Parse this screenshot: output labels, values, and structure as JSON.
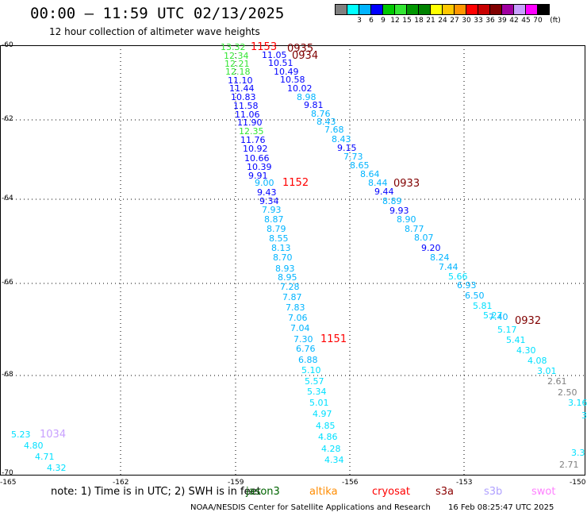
{
  "title": "00:00 – 11:59 UTC 02/13/2025",
  "subtitle": "12 hour collection of altimeter wave heights",
  "lat_labels": [
    "-60",
    "-62",
    "-64",
    "-66",
    "-68",
    "-70"
  ],
  "lon_labels": [
    "-165",
    "-162",
    "-159",
    "-156",
    "-153",
    "-150"
  ],
  "colorbar": {
    "unit": "(ft)",
    "bins": [
      {
        "label": "",
        "color": "#808080"
      },
      {
        "label": "3",
        "color": "#00ffff"
      },
      {
        "label": "6",
        "color": "#00b4ff"
      },
      {
        "label": "9",
        "color": "#0000ff"
      },
      {
        "label": "12",
        "color": "#00c800"
      },
      {
        "label": "15",
        "color": "#32e632"
      },
      {
        "label": "18",
        "color": "#009600"
      },
      {
        "label": "21",
        "color": "#008200"
      },
      {
        "label": "24",
        "color": "#ffff00"
      },
      {
        "label": "27",
        "color": "#ffc800"
      },
      {
        "label": "30",
        "color": "#ff9600"
      },
      {
        "label": "33",
        "color": "#ff0000"
      },
      {
        "label": "36",
        "color": "#c80000"
      },
      {
        "label": "39",
        "color": "#800000"
      },
      {
        "label": "42",
        "color": "#a000a0"
      },
      {
        "label": "45",
        "color": "#c8a0ff"
      },
      {
        "label": "70",
        "color": "#ff00ff"
      },
      {
        "label": "",
        "color": "#000000"
      }
    ]
  },
  "note": "note: 1) Time is in UTC; 2) SWH is in feet",
  "satellites": [
    {
      "name": "jason3",
      "color": "#006400"
    },
    {
      "name": "altika",
      "color": "#ff8c00"
    },
    {
      "name": "cryosat",
      "color": "#ff0000"
    },
    {
      "name": "s3a",
      "color": "#8b0000"
    },
    {
      "name": "s3b",
      "color": "#b0a0ff"
    },
    {
      "name": "swot",
      "color": "#ff80ff"
    }
  ],
  "credit": "NOAA/NESDIS Center for Satellite Applications and Research",
  "generated": "16 Feb 08:25:47 UTC 2025",
  "time_labels": [
    {
      "text": "1153",
      "color": "#ff0000"
    },
    {
      "text": "0935",
      "color": "#800000"
    },
    {
      "text": "0934",
      "color": "#800000"
    },
    {
      "text": "1152",
      "color": "#ff0000"
    },
    {
      "text": "0933",
      "color": "#800000"
    },
    {
      "text": "0932",
      "color": "#800000"
    },
    {
      "text": "1151",
      "color": "#ff0000"
    },
    {
      "text": "1034",
      "color": "#c8a0ff"
    }
  ],
  "track_a": [
    {
      "v": "13.32",
      "c": "#32e632"
    },
    {
      "v": "12.34",
      "c": "#32e632"
    },
    {
      "v": "12.21",
      "c": "#32e632"
    },
    {
      "v": "12.18",
      "c": "#32e632"
    },
    {
      "v": "11.10",
      "c": "#0000ff"
    },
    {
      "v": "11.44",
      "c": "#0000ff"
    },
    {
      "v": "10.83",
      "c": "#0000ff"
    },
    {
      "v": "11.58",
      "c": "#0000ff"
    },
    {
      "v": "11.06",
      "c": "#0000ff"
    },
    {
      "v": "11.90",
      "c": "#0000ff"
    },
    {
      "v": "12.35",
      "c": "#32e632"
    },
    {
      "v": "11.76",
      "c": "#0000ff"
    },
    {
      "v": "10.92",
      "c": "#0000ff"
    },
    {
      "v": "10.66",
      "c": "#0000ff"
    },
    {
      "v": "10.39",
      "c": "#0000ff"
    },
    {
      "v": "9.91",
      "c": "#0000ff"
    },
    {
      "v": "9.00",
      "c": "#00b4ff"
    },
    {
      "v": "9.43",
      "c": "#0000ff"
    },
    {
      "v": "9.34",
      "c": "#0000ff"
    },
    {
      "v": "7.93",
      "c": "#00b4ff"
    },
    {
      "v": "8.87",
      "c": "#00b4ff"
    },
    {
      "v": "8.79",
      "c": "#00b4ff"
    },
    {
      "v": "8.55",
      "c": "#00b4ff"
    },
    {
      "v": "8.13",
      "c": "#00b4ff"
    },
    {
      "v": "8.70",
      "c": "#00b4ff"
    },
    {
      "v": "8.93",
      "c": "#00b4ff"
    },
    {
      "v": "8.95",
      "c": "#00b4ff"
    },
    {
      "v": "7.28",
      "c": "#00b4ff"
    },
    {
      "v": "7.87",
      "c": "#00b4ff"
    },
    {
      "v": "7.83",
      "c": "#00b4ff"
    },
    {
      "v": "7.06",
      "c": "#00b4ff"
    },
    {
      "v": "7.04",
      "c": "#00b4ff"
    },
    {
      "v": "7.30",
      "c": "#00b4ff"
    },
    {
      "v": "6.76",
      "c": "#00b4ff"
    },
    {
      "v": "6.88",
      "c": "#00b4ff"
    },
    {
      "v": "5.10",
      "c": "#00e0ff"
    },
    {
      "v": "5.57",
      "c": "#00e0ff"
    },
    {
      "v": "5.34",
      "c": "#00e0ff"
    },
    {
      "v": "5.01",
      "c": "#00e0ff"
    },
    {
      "v": "4.97",
      "c": "#00e0ff"
    },
    {
      "v": "4.85",
      "c": "#00e0ff"
    },
    {
      "v": "4.86",
      "c": "#00e0ff"
    },
    {
      "v": "4.28",
      "c": "#00e0ff"
    },
    {
      "v": "4.34",
      "c": "#00e0ff"
    }
  ],
  "track_b": [
    {
      "v": "11.05",
      "c": "#0000ff"
    },
    {
      "v": "10.51",
      "c": "#0000ff"
    },
    {
      "v": "10.49",
      "c": "#0000ff"
    },
    {
      "v": "10.58",
      "c": "#0000ff"
    },
    {
      "v": "10.02",
      "c": "#0000ff"
    },
    {
      "v": "8.98",
      "c": "#00b4ff"
    },
    {
      "v": "9.81",
      "c": "#0000ff"
    },
    {
      "v": "8.76",
      "c": "#00b4ff"
    },
    {
      "v": "8.43",
      "c": "#00b4ff"
    },
    {
      "v": "7.68",
      "c": "#00b4ff"
    },
    {
      "v": "8.43",
      "c": "#00b4ff"
    },
    {
      "v": "9.15",
      "c": "#0000ff"
    },
    {
      "v": "7.73",
      "c": "#00b4ff"
    },
    {
      "v": "8.65",
      "c": "#00b4ff"
    },
    {
      "v": "8.64",
      "c": "#00b4ff"
    },
    {
      "v": "8.44",
      "c": "#00b4ff"
    },
    {
      "v": "9.44",
      "c": "#0000ff"
    },
    {
      "v": "8.89",
      "c": "#00b4ff"
    },
    {
      "v": "9.93",
      "c": "#0000ff"
    },
    {
      "v": "8.90",
      "c": "#00b4ff"
    },
    {
      "v": "8.77",
      "c": "#00b4ff"
    },
    {
      "v": "8.07",
      "c": "#00b4ff"
    },
    {
      "v": "9.20",
      "c": "#0000ff"
    },
    {
      "v": "8.24",
      "c": "#00b4ff"
    },
    {
      "v": "7.44",
      "c": "#00b4ff"
    },
    {
      "v": "5.66",
      "c": "#00e0ff"
    },
    {
      "v": "6.93",
      "c": "#00b4ff"
    },
    {
      "v": "6.50",
      "c": "#00b4ff"
    },
    {
      "v": "5.81",
      "c": "#00e0ff"
    },
    {
      "v": "5.27",
      "c": "#00e0ff"
    },
    {
      "v": "7.40",
      "c": "#00b4ff"
    },
    {
      "v": "5.17",
      "c": "#00e0ff"
    },
    {
      "v": "5.41",
      "c": "#00e0ff"
    },
    {
      "v": "4.30",
      "c": "#00e0ff"
    },
    {
      "v": "4.08",
      "c": "#00e0ff"
    },
    {
      "v": "3.01",
      "c": "#00e0ff"
    },
    {
      "v": "2.61",
      "c": "#808080"
    },
    {
      "v": "2.50",
      "c": "#808080"
    },
    {
      "v": "3.16",
      "c": "#00e0ff"
    },
    {
      "v": "3",
      "c": "#00e0ff"
    },
    {
      "v": "3.3",
      "c": "#00e0ff"
    },
    {
      "v": "2.71",
      "c": "#808080"
    }
  ],
  "track_c": [
    {
      "v": "5.23",
      "c": "#00e0ff"
    },
    {
      "v": "4.80",
      "c": "#00e0ff"
    },
    {
      "v": "4.71",
      "c": "#00e0ff"
    },
    {
      "v": "4.32",
      "c": "#00e0ff"
    }
  ]
}
